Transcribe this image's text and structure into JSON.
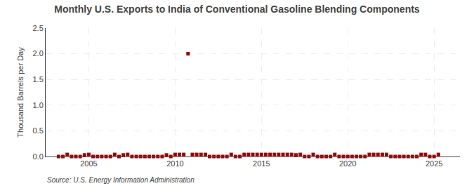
{
  "chart_data": {
    "type": "scatter",
    "title": "Monthly U.S. Exports to India of Conventional Gasoline Blending Components",
    "ylabel": "Thousand Barrels per Day",
    "annotations": [
      "Source: U.S. Energy Information Administration"
    ],
    "color": "#990000",
    "marker": "square",
    "grid": true,
    "xlim": [
      2002.5,
      2026.5
    ],
    "ylim": [
      0.0,
      2.5
    ],
    "xticks": [
      2005,
      2010,
      2015,
      2020,
      2025
    ],
    "yticks": [
      {
        "value": 0.0,
        "label": "0.0"
      },
      {
        "value": 0.5,
        "label": "0.5"
      },
      {
        "value": 1.0,
        "label": "1.0"
      },
      {
        "value": 1.5,
        "label": "1.5"
      },
      {
        "value": 2.0,
        "label": "2.0"
      },
      {
        "value": 2.5,
        "label": "2.5"
      }
    ],
    "x": [
      2003.25,
      2003.5,
      2003.75,
      2004.0,
      2004.25,
      2004.5,
      2004.75,
      2005.0,
      2005.25,
      2005.5,
      2005.75,
      2006.0,
      2006.25,
      2006.5,
      2006.75,
      2007.0,
      2007.25,
      2007.5,
      2007.75,
      2008.0,
      2008.25,
      2008.5,
      2008.75,
      2009.0,
      2009.25,
      2009.5,
      2009.75,
      2010.0,
      2010.25,
      2010.5,
      2010.75,
      2011.0,
      2011.25,
      2011.5,
      2011.75,
      2012.0,
      2012.25,
      2012.5,
      2012.75,
      2013.0,
      2013.25,
      2013.5,
      2013.75,
      2014.0,
      2014.25,
      2014.5,
      2014.75,
      2015.0,
      2015.25,
      2015.5,
      2015.75,
      2016.0,
      2016.25,
      2016.5,
      2016.75,
      2017.0,
      2017.25,
      2017.5,
      2017.75,
      2018.0,
      2018.25,
      2018.5,
      2018.75,
      2019.0,
      2019.25,
      2019.5,
      2019.75,
      2020.0,
      2020.25,
      2020.5,
      2020.75,
      2021.0,
      2021.25,
      2021.5,
      2021.75,
      2022.0,
      2022.25,
      2022.5,
      2022.75,
      2023.0,
      2023.25,
      2023.5,
      2023.75,
      2024.0,
      2024.25,
      2024.5,
      2024.75,
      2025.0,
      2025.25
    ],
    "values": [
      0.0,
      0.0,
      0.04,
      0.0,
      0.0,
      0.0,
      0.03,
      0.04,
      0.0,
      0.0,
      0.0,
      0.0,
      0.0,
      0.04,
      0.0,
      0.03,
      0.04,
      0.0,
      0.0,
      0.0,
      0.0,
      0.0,
      0.0,
      0.0,
      0.0,
      0.03,
      0.0,
      0.04,
      0.04,
      0.04,
      2.0,
      0.04,
      0.04,
      0.04,
      0.04,
      0.0,
      0.0,
      0.0,
      0.0,
      0.0,
      0.04,
      0.0,
      0.0,
      0.04,
      0.04,
      0.04,
      0.04,
      0.04,
      0.04,
      0.04,
      0.04,
      0.04,
      0.04,
      0.04,
      0.04,
      0.03,
      0.04,
      0.0,
      0.0,
      0.04,
      0.0,
      0.0,
      0.0,
      0.0,
      0.04,
      0.0,
      0.0,
      0.0,
      0.0,
      0.0,
      0.0,
      0.0,
      0.04,
      0.04,
      0.04,
      0.04,
      0.04,
      0.0,
      0.0,
      0.0,
      0.0,
      0.0,
      0.0,
      0.0,
      0.04,
      0.04,
      0.0,
      0.0,
      0.04
    ]
  }
}
